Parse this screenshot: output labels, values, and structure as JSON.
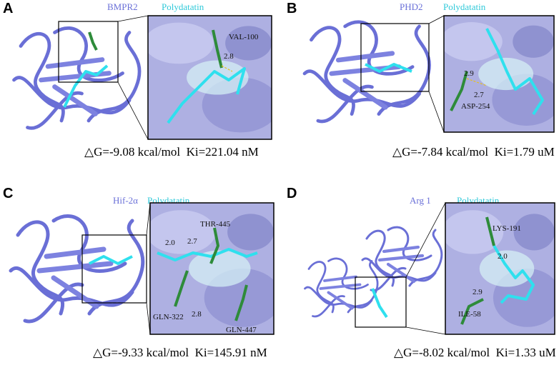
{
  "panels": [
    {
      "letter": "A",
      "protein": "BMPR2",
      "ligand": "Polydatatin",
      "residues": [
        "VAL-100"
      ],
      "distances": [
        "2.8"
      ],
      "energy": "△G=-9.08 kcal/mol  Ki=221.04 nM"
    },
    {
      "letter": "B",
      "protein": "PHD2",
      "ligand": "Polydatatin",
      "residues": [
        "ASP-254"
      ],
      "distances": [
        "2.9",
        "2.7"
      ],
      "energy": "△G=-7.84 kcal/mol  Ki=1.79 uM"
    },
    {
      "letter": "C",
      "protein": "Hif-2α",
      "ligand": "Polydatatin",
      "residues": [
        "THR-445",
        "GLN-322",
        "GLN-447"
      ],
      "distances": [
        "2.0",
        "2.7",
        "2.8"
      ],
      "energy": "△G=-9.33 kcal/mol  Ki=145.91 nM"
    },
    {
      "letter": "D",
      "protein": "Arg 1",
      "ligand": "Polydatatin",
      "residues": [
        "LYS-191",
        "ILE-58"
      ],
      "distances": [
        "2.0",
        "2.9"
      ],
      "energy": "△G=-8.02 kcal/mol  Ki=1.33 uM"
    }
  ]
}
